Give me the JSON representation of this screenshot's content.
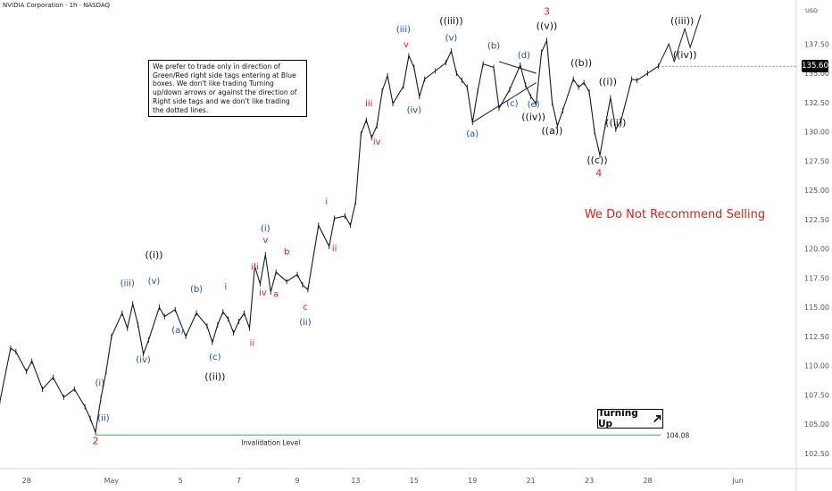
{
  "header": {
    "symbol": "NVIDIA Corporation · 1h · NASDAQ",
    "currency": "USD"
  },
  "note_text": "We prefer to trade only in direction of Green/Red right side tags entering at Blue boxes. We don't like trading Turning up/down arrows or against the direction of Right side tags and we don't like trading the dotted lines.",
  "turning": {
    "label": "Turning Up",
    "icon": "arrow-up-right-icon"
  },
  "recommend": {
    "text": "We Do Not Recommend Selling",
    "color": "#e31d1d"
  },
  "invalidation": {
    "label": "Invalidation Level",
    "value": 104.08,
    "value_label": "104.08",
    "color": "#2db84d"
  },
  "colors": {
    "red": "#e31d1d",
    "blue": "#1f4fa8",
    "black": "#111111",
    "bar": "#1a1a1a",
    "axis_text": "#555555"
  },
  "chart_data": {
    "type": "line",
    "title": "NVIDIA Corporation · 1h · NASDAQ",
    "y_axis": {
      "ticks": [
        "102.50",
        "105.00",
        "107.50",
        "110.00",
        "112.50",
        "115.00",
        "117.50",
        "120.00",
        "122.50",
        "125.00",
        "127.50",
        "130.00",
        "132.50",
        "135.00",
        "137.50"
      ],
      "range": [
        101.2,
        140.5
      ]
    },
    "x_axis": {
      "ticks": [
        "28",
        "May",
        "5",
        "7",
        "9",
        "13",
        "15",
        "19",
        "21",
        "23",
        "28",
        "Jun"
      ],
      "ticks_x_index": [
        5,
        21,
        34,
        45,
        56,
        67,
        78,
        89,
        100,
        111,
        122,
        139
      ],
      "range_index": [
        0,
        150
      ]
    },
    "last_price": {
      "value": 135.6,
      "label": "135.60"
    },
    "series": [
      {
        "values": [
          [
            0,
            107.0
          ],
          [
            2,
            111.5
          ],
          [
            3,
            111.2
          ],
          [
            5,
            109.5
          ],
          [
            6,
            110.4
          ],
          [
            8,
            108.0
          ],
          [
            10,
            109.0
          ],
          [
            12,
            107.3
          ],
          [
            14,
            108.0
          ],
          [
            16,
            106.5
          ],
          [
            17,
            105.5
          ],
          [
            18,
            104.3
          ],
          [
            19,
            107.2
          ],
          [
            20,
            109.5
          ],
          [
            21,
            112.5
          ],
          [
            23,
            114.5
          ],
          [
            24,
            113.2
          ],
          [
            25,
            115.3
          ],
          [
            26,
            113.5
          ],
          [
            27,
            111.0
          ],
          [
            28,
            112.2
          ],
          [
            30,
            115.0
          ],
          [
            31,
            114.2
          ],
          [
            33,
            114.8
          ],
          [
            35,
            112.5
          ],
          [
            37,
            114.5
          ],
          [
            39,
            113.4
          ],
          [
            40,
            112.0
          ],
          [
            41,
            113.5
          ],
          [
            42,
            114.6
          ],
          [
            43,
            114.0
          ],
          [
            44,
            112.8
          ],
          [
            45,
            113.8
          ],
          [
            46,
            114.5
          ],
          [
            47,
            113.2
          ],
          [
            48,
            118.5
          ],
          [
            49,
            117.0
          ],
          [
            50,
            119.5
          ],
          [
            51,
            116.3
          ],
          [
            52,
            118.0
          ],
          [
            54,
            117.2
          ],
          [
            56,
            117.8
          ],
          [
            57,
            116.9
          ],
          [
            58,
            116.5
          ],
          [
            60,
            122.0
          ],
          [
            62,
            120.2
          ],
          [
            63,
            122.6
          ],
          [
            65,
            122.8
          ],
          [
            66,
            122.0
          ],
          [
            67,
            124.0
          ],
          [
            68,
            129.8
          ],
          [
            69,
            131.0
          ],
          [
            70,
            129.5
          ],
          [
            71,
            130.5
          ],
          [
            72,
            133.5
          ],
          [
            73,
            134.8
          ],
          [
            74,
            132.4
          ],
          [
            76,
            133.9
          ],
          [
            77,
            136.5
          ],
          [
            78,
            135.5
          ],
          [
            79,
            133.0
          ],
          [
            80,
            134.5
          ],
          [
            82,
            135.2
          ],
          [
            84,
            135.9
          ],
          [
            85,
            136.9
          ],
          [
            86,
            135.0
          ],
          [
            87,
            134.4
          ],
          [
            88,
            133.8
          ],
          [
            89,
            130.8
          ],
          [
            90,
            133.5
          ],
          [
            91,
            135.8
          ],
          [
            93,
            135.5
          ],
          [
            94,
            132.0
          ],
          [
            96,
            133.6
          ],
          [
            98,
            135.7
          ],
          [
            99,
            134.0
          ],
          [
            100,
            133.0
          ],
          [
            101,
            132.4
          ],
          [
            102,
            136.8
          ],
          [
            103,
            137.8
          ],
          [
            104,
            132.5
          ],
          [
            105,
            130.5
          ],
          [
            106,
            131.8
          ],
          [
            108,
            134.5
          ],
          [
            109,
            133.8
          ],
          [
            110,
            134.2
          ],
          [
            111,
            133.4
          ],
          [
            112,
            130.0
          ],
          [
            113,
            128.0
          ],
          [
            114,
            130.5
          ],
          [
            115,
            132.9
          ],
          [
            116,
            130.2
          ],
          [
            117,
            131.0
          ],
          [
            119,
            134.5
          ],
          [
            120,
            134.4
          ],
          [
            122,
            135.0
          ],
          [
            124,
            135.6
          ]
        ]
      },
      {
        "values": [
          [
            124,
            135.6
          ],
          [
            126,
            137.5
          ],
          [
            127,
            136.0
          ],
          [
            129,
            138.8
          ],
          [
            130,
            137.2
          ],
          [
            132,
            140.0
          ]
        ]
      }
    ],
    "lines": [
      {
        "name": "triangle-upper",
        "points": [
          [
            94,
            136.0
          ],
          [
            101,
            135.0
          ]
        ]
      },
      {
        "name": "triangle-lower",
        "points": [
          [
            89,
            130.8
          ],
          [
            101,
            134.2
          ]
        ]
      }
    ],
    "labels": [
      {
        "text": "2",
        "x": 18,
        "y": 103.3,
        "color": "red",
        "size": 11
      },
      {
        "text": "(i)",
        "x": 18.8,
        "y": 108.3,
        "color": "blue",
        "size": 10
      },
      {
        "text": "(ii)",
        "x": 19.5,
        "y": 105.3,
        "color": "blue",
        "size": 10
      },
      {
        "text": "(iii)",
        "x": 24,
        "y": 116.8,
        "color": "blue",
        "size": 10
      },
      {
        "text": "(iv)",
        "x": 27,
        "y": 110.3,
        "color": "blue",
        "size": 10
      },
      {
        "text": "(v)",
        "x": 29,
        "y": 117.0,
        "color": "blue",
        "size": 10
      },
      {
        "text": "((i))",
        "x": 29,
        "y": 119.2,
        "color": "black",
        "size": 11
      },
      {
        "text": "(a)",
        "x": 33.5,
        "y": 112.8,
        "color": "blue",
        "size": 10
      },
      {
        "text": "(b)",
        "x": 37,
        "y": 116.3,
        "color": "blue",
        "size": 10
      },
      {
        "text": "(c)",
        "x": 40.5,
        "y": 110.5,
        "color": "blue",
        "size": 10
      },
      {
        "text": "((ii))",
        "x": 40.5,
        "y": 108.8,
        "color": "black",
        "size": 11
      },
      {
        "text": "i",
        "x": 42.5,
        "y": 116.5,
        "color": "red",
        "size": 10
      },
      {
        "text": "ii",
        "x": 47.5,
        "y": 111.7,
        "color": "red",
        "size": 10
      },
      {
        "text": "iii",
        "x": 48,
        "y": 118.2,
        "color": "red",
        "size": 10
      },
      {
        "text": "iv",
        "x": 49.5,
        "y": 116.0,
        "color": "red",
        "size": 10
      },
      {
        "text": "(i)",
        "x": 50,
        "y": 121.5,
        "color": "blue",
        "size": 10
      },
      {
        "text": "v",
        "x": 50,
        "y": 120.5,
        "color": "red",
        "size": 10
      },
      {
        "text": "b",
        "x": 54,
        "y": 119.5,
        "color": "red",
        "size": 10
      },
      {
        "text": "a",
        "x": 52,
        "y": 115.9,
        "color": "red",
        "size": 10
      },
      {
        "text": "c",
        "x": 57.5,
        "y": 114.8,
        "color": "red",
        "size": 10
      },
      {
        "text": "(ii)",
        "x": 57.5,
        "y": 113.5,
        "color": "blue",
        "size": 10
      },
      {
        "text": "i",
        "x": 61.5,
        "y": 123.8,
        "color": "red",
        "size": 10
      },
      {
        "text": "ii",
        "x": 63,
        "y": 119.8,
        "color": "red",
        "size": 10
      },
      {
        "text": "iii",
        "x": 69.5,
        "y": 132.2,
        "color": "red",
        "size": 10
      },
      {
        "text": "iv",
        "x": 71,
        "y": 128.9,
        "color": "red",
        "size": 10
      },
      {
        "text": "(iii)",
        "x": 76,
        "y": 138.5,
        "color": "blue",
        "size": 10
      },
      {
        "text": "v",
        "x": 76.5,
        "y": 137.2,
        "color": "red",
        "size": 10
      },
      {
        "text": "(iv)",
        "x": 78,
        "y": 131.6,
        "color": "blue",
        "size": 10
      },
      {
        "text": "((iii))",
        "x": 85,
        "y": 139.2,
        "color": "black",
        "size": 11
      },
      {
        "text": "(v)",
        "x": 85,
        "y": 137.8,
        "color": "blue",
        "size": 10
      },
      {
        "text": "(a)",
        "x": 89,
        "y": 129.6,
        "color": "blue",
        "size": 10
      },
      {
        "text": "(b)",
        "x": 93,
        "y": 137.1,
        "color": "blue",
        "size": 10
      },
      {
        "text": "(c)",
        "x": 96.5,
        "y": 132.2,
        "color": "blue",
        "size": 10
      },
      {
        "text": "(d)",
        "x": 98.7,
        "y": 136.3,
        "color": "blue",
        "size": 10
      },
      {
        "text": "(e)",
        "x": 100.5,
        "y": 132.1,
        "color": "blue",
        "size": 10
      },
      {
        "text": "((iv))",
        "x": 100.5,
        "y": 131.0,
        "color": "black",
        "size": 11
      },
      {
        "text": "3",
        "x": 103,
        "y": 140.0,
        "color": "red",
        "size": 11
      },
      {
        "text": "((v))",
        "x": 103,
        "y": 138.8,
        "color": "black",
        "size": 11
      },
      {
        "text": "((a))",
        "x": 104,
        "y": 129.8,
        "color": "black",
        "size": 11
      },
      {
        "text": "((b))",
        "x": 109.5,
        "y": 135.6,
        "color": "black",
        "size": 11
      },
      {
        "text": "((c))",
        "x": 112.5,
        "y": 127.3,
        "color": "black",
        "size": 11
      },
      {
        "text": "4",
        "x": 112.8,
        "y": 126.2,
        "color": "red",
        "size": 11
      },
      {
        "text": "((i))",
        "x": 114.5,
        "y": 134.0,
        "color": "black",
        "size": 11
      },
      {
        "text": "((ii))",
        "x": 116,
        "y": 130.5,
        "color": "black",
        "size": 11
      },
      {
        "text": "((iii))",
        "x": 128.5,
        "y": 139.2,
        "color": "black",
        "size": 11
      },
      {
        "text": "((iv))",
        "x": 129,
        "y": 136.3,
        "color": "black",
        "size": 11
      }
    ]
  }
}
